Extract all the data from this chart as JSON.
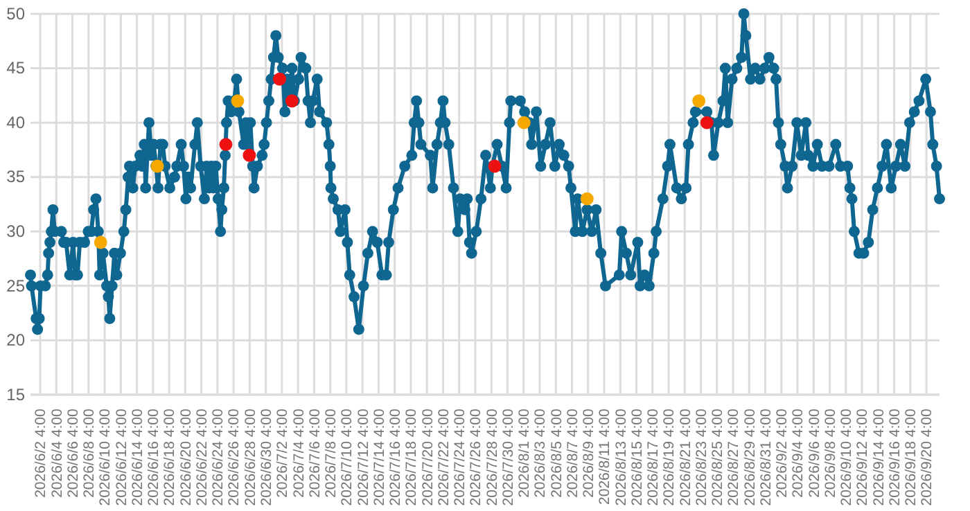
{
  "chart_data": {
    "type": "line",
    "ylim": [
      15,
      50
    ],
    "yticks": [
      15,
      20,
      25,
      30,
      35,
      40,
      45,
      50
    ],
    "xlim": [
      "2026-05-31T23:00",
      "2026-09-21T19:00"
    ],
    "xticks": [
      {
        "value": "2026-06-02T04:00",
        "label": "2026/6/2 4:00"
      },
      {
        "value": "2026-06-04T04:00",
        "label": "2026/6/4 4:00"
      },
      {
        "value": "2026-06-06T04:00",
        "label": "2026/6/6 4:00"
      },
      {
        "value": "2026-06-08T04:00",
        "label": "2026/6/8 4:00"
      },
      {
        "value": "2026-06-10T04:00",
        "label": "2026/6/10 4:00"
      },
      {
        "value": "2026-06-12T04:00",
        "label": "2026/6/12 4:00"
      },
      {
        "value": "2026-06-14T04:00",
        "label": "2026/6/14 4:00"
      },
      {
        "value": "2026-06-16T04:00",
        "label": "2026/6/16 4:00"
      },
      {
        "value": "2026-06-18T04:00",
        "label": "2026/6/18 4:00"
      },
      {
        "value": "2026-06-20T04:00",
        "label": "2026/6/20 4:00"
      },
      {
        "value": "2026-06-22T04:00",
        "label": "2026/6/22 4:00"
      },
      {
        "value": "2026-06-24T04:00",
        "label": "2026/6/24 4:00"
      },
      {
        "value": "2026-06-26T04:00",
        "label": "2026/6/26 4:00"
      },
      {
        "value": "2026-06-28T04:00",
        "label": "2026/6/28 4:00"
      },
      {
        "value": "2026-06-30T04:00",
        "label": "2026/6/30 4:00"
      },
      {
        "value": "2026-07-02T04:00",
        "label": "2026/7/2 4:00"
      },
      {
        "value": "2026-07-04T04:00",
        "label": "2026/7/4 4:00"
      },
      {
        "value": "2026-07-06T04:00",
        "label": "2026/7/6 4:00"
      },
      {
        "value": "2026-07-08T04:00",
        "label": "2026/7/8 4:00"
      },
      {
        "value": "2026-07-10T04:00",
        "label": "2026/7/10 4:00"
      },
      {
        "value": "2026-07-12T04:00",
        "label": "2026/7/12 4:00"
      },
      {
        "value": "2026-07-14T04:00",
        "label": "2026/7/14 4:00"
      },
      {
        "value": "2026-07-16T04:00",
        "label": "2026/7/16 4:00"
      },
      {
        "value": "2026-07-18T04:00",
        "label": "2026/7/18 4:00"
      },
      {
        "value": "2026-07-20T04:00",
        "label": "2026/7/20 4:00"
      },
      {
        "value": "2026-07-22T04:00",
        "label": "2026/7/22 4:00"
      },
      {
        "value": "2026-07-24T04:00",
        "label": "2026/7/24 4:00"
      },
      {
        "value": "2026-07-26T04:00",
        "label": "2026/7/26 4:00"
      },
      {
        "value": "2026-07-28T04:00",
        "label": "2026/7/28 4:00"
      },
      {
        "value": "2026-07-30T04:00",
        "label": "2026/7/30 4:00"
      },
      {
        "value": "2026-08-01T04:00",
        "label": "2026/8/1 4:00"
      },
      {
        "value": "2026-08-03T04:00",
        "label": "2026/8/3 4:00"
      },
      {
        "value": "2026-08-05T04:00",
        "label": "2026/8/5 4:00"
      },
      {
        "value": "2026-08-07T04:00",
        "label": "2026/8/7 4:00"
      },
      {
        "value": "2026-08-09T04:00",
        "label": "2026/8/9 4:00"
      },
      {
        "value": "2026-08-11T04:00",
        "label": "2026/8/11 4:00"
      },
      {
        "value": "2026-08-13T04:00",
        "label": "2026/8/13 4:00"
      },
      {
        "value": "2026-08-15T04:00",
        "label": "2026/8/15 4:00"
      },
      {
        "value": "2026-08-17T04:00",
        "label": "2026/8/17 4:00"
      },
      {
        "value": "2026-08-19T04:00",
        "label": "2026/8/19 4:00"
      },
      {
        "value": "2026-08-21T04:00",
        "label": "2026/8/21 4:00"
      },
      {
        "value": "2026-08-23T04:00",
        "label": "2026/8/23 4:00"
      },
      {
        "value": "2026-08-25T04:00",
        "label": "2026/8/25 4:00"
      },
      {
        "value": "2026-08-27T04:00",
        "label": "2026/8/27 4:00"
      },
      {
        "value": "2026-08-29T04:00",
        "label": "2026/8/29 4:00"
      },
      {
        "value": "2026-08-31T04:00",
        "label": "2026/8/31 4:00"
      },
      {
        "value": "2026-09-02T04:00",
        "label": "2026/9/2 4:00"
      },
      {
        "value": "2026-09-04T04:00",
        "label": "2026/9/4 4:00"
      },
      {
        "value": "2026-09-06T04:00",
        "label": "2026/9/6 4:00"
      },
      {
        "value": "2026-09-08T04:00",
        "label": "2026/9/8 4:00"
      },
      {
        "value": "2026-09-10T04:00",
        "label": "2026/9/10 4:00"
      },
      {
        "value": "2026-09-12T04:00",
        "label": "2026/9/12 4:00"
      },
      {
        "value": "2026-09-14T04:00",
        "label": "2026/9/14 4:00"
      },
      {
        "value": "2026-09-16T04:00",
        "label": "2026/9/16 4:00"
      },
      {
        "value": "2026-09-18T04:00",
        "label": "2026/9/18 4:00"
      },
      {
        "value": "2026-09-20T04:00",
        "label": "2026/9/20 4:00"
      }
    ],
    "grid": true,
    "marker": "circle",
    "line_style": "solid",
    "series": [
      {
        "type": "line",
        "color": "#0f6690",
        "x": [
          "2026-05-31T23:00",
          "2026-06-01T02:00",
          "2026-06-01T16:00",
          "2026-06-01T20:00",
          "2026-06-02T01:00",
          "2026-06-02T05:00",
          "2026-06-02T19:00",
          "2026-06-03T02:00",
          "2026-06-03T05:00",
          "2026-06-03T09:00",
          "2026-06-03T13:00",
          "2026-06-03T18:00",
          "2026-06-03T23:00",
          "2026-06-04T19:00",
          "2026-06-05T02:00",
          "2026-06-05T09:00",
          "2026-06-05T20:00",
          "2026-06-06T06:00",
          "2026-06-06T12:00",
          "2026-06-06T19:00",
          "2026-06-07T02:00",
          "2026-06-07T16:00",
          "2026-06-08T03:00",
          "2026-06-08T12:00",
          "2026-06-08T19:00",
          "2026-06-09T02:00",
          "2026-06-09T09:00",
          "2026-06-09T13:00",
          "2026-06-09T23:00",
          "2026-06-10T10:00",
          "2026-06-10T15:00",
          "2026-06-10T19:00",
          "2026-06-11T02:00",
          "2026-06-11T09:00",
          "2026-06-11T16:00",
          "2026-06-12T03:00",
          "2026-06-12T13:00",
          "2026-06-12T19:00",
          "2026-06-13T02:00",
          "2026-06-13T06:00",
          "2026-06-13T16:00",
          "2026-06-13T23:00",
          "2026-06-14T13:00",
          "2026-06-14T20:00",
          "2026-06-15T02:00",
          "2026-06-15T06:00",
          "2026-06-15T16:00",
          "2026-06-15T23:00",
          "2026-06-16T06:00",
          "2026-06-16T13:00",
          "2026-06-16T19:00",
          "2026-06-17T02:00",
          "2026-06-17T09:00",
          "2026-06-17T16:00",
          "2026-06-18T06:00",
          "2026-06-18T20:00",
          "2026-06-19T03:00",
          "2026-06-19T16:00",
          "2026-06-19T23:00",
          "2026-06-20T06:00",
          "2026-06-20T13:00",
          "2026-06-20T20:00",
          "2026-06-21T09:00",
          "2026-06-21T16:00",
          "2026-06-22T02:00",
          "2026-06-22T13:00",
          "2026-06-22T20:00",
          "2026-06-23T03:00",
          "2026-06-23T10:00",
          "2026-06-23T16:00",
          "2026-06-23T23:00",
          "2026-06-24T06:00",
          "2026-06-24T13:00",
          "2026-06-24T17:00",
          "2026-06-24T23:00",
          "2026-06-25T03:00",
          "2026-06-25T07:00",
          "2026-06-25T12:00",
          "2026-06-25T21:00",
          "2026-06-26T06:00",
          "2026-06-26T13:00",
          "2026-06-26T20:00",
          "2026-06-27T10:00",
          "2026-06-27T17:00",
          "2026-06-27T23:00",
          "2026-06-28T06:00",
          "2026-06-28T13:00",
          "2026-06-28T17:00",
          "2026-06-29T03:00",
          "2026-06-29T17:00",
          "2026-06-29T23:00",
          "2026-06-30T06:00",
          "2026-06-30T13:00",
          "2026-06-30T20:00",
          "2026-07-01T03:00",
          "2026-07-01T10:00",
          "2026-07-01T17:00",
          "2026-07-02T06:00",
          "2026-07-02T13:00",
          "2026-07-02T20:00",
          "2026-07-03T03:00",
          "2026-07-03T10:00",
          "2026-07-03T17:00",
          "2026-07-04T06:00",
          "2026-07-04T13:00",
          "2026-07-05T03:00",
          "2026-07-05T10:00",
          "2026-07-05T17:00",
          "2026-07-06T00:00",
          "2026-07-06T13:00",
          "2026-07-06T20:00",
          "2026-07-07T17:00",
          "2026-07-08T00:00",
          "2026-07-08T04:00",
          "2026-07-08T06:00",
          "2026-07-08T13:00",
          "2026-07-09T03:00",
          "2026-07-09T10:00",
          "2026-07-10T00:00",
          "2026-07-10T07:00",
          "2026-07-10T14:00",
          "2026-07-11T03:00",
          "2026-07-11T17:00",
          "2026-07-12T07:00",
          "2026-07-12T20:00",
          "2026-07-13T10:00",
          "2026-07-14T00:00",
          "2026-07-14T14:00",
          "2026-07-15T03:00",
          "2026-07-15T10:00",
          "2026-07-16T00:00",
          "2026-07-16T14:00",
          "2026-07-17T10:00",
          "2026-07-18T07:00",
          "2026-07-18T14:00",
          "2026-07-18T21:00",
          "2026-07-19T04:00",
          "2026-07-19T10:00",
          "2026-07-20T14:00",
          "2026-07-20T21:00",
          "2026-07-21T10:00",
          "2026-07-21T20:00",
          "2026-07-22T04:00",
          "2026-07-22T10:00",
          "2026-07-22T21:00",
          "2026-07-23T11:00",
          "2026-07-24T00:00",
          "2026-07-24T07:00",
          "2026-07-24T21:00",
          "2026-07-25T04:00",
          "2026-07-25T11:00",
          "2026-07-25T17:00",
          "2026-07-26T07:00",
          "2026-07-26T21:00",
          "2026-07-27T11:00",
          "2026-07-28T01:00",
          "2026-07-28T07:00",
          "2026-07-28T21:00",
          "2026-07-29T11:00",
          "2026-07-30T00:00",
          "2026-07-30T10:00",
          "2026-07-30T14:00",
          "2026-07-31T18:00",
          "2026-08-01T07:00",
          "2026-08-01T21:00",
          "2026-08-02T04:00",
          "2026-08-02T18:00",
          "2026-08-03T07:00",
          "2026-08-03T21:00",
          "2026-08-04T11:00",
          "2026-08-05T01:00",
          "2026-08-05T14:00",
          "2026-08-06T04:00",
          "2026-08-06T18:00",
          "2026-08-07T01:00",
          "2026-08-07T14:00",
          "2026-08-07T21:00",
          "2026-08-08T11:00",
          "2026-08-09T01:00",
          "2026-08-09T15:00",
          "2026-08-10T04:00",
          "2026-08-10T18:00",
          "2026-08-11T08:00",
          "2026-08-13T01:00",
          "2026-08-13T08:00",
          "2026-08-13T22:00",
          "2026-08-14T11:00",
          "2026-08-15T08:00",
          "2026-08-15T15:00",
          "2026-08-16T04:00",
          "2026-08-16T18:00",
          "2026-08-17T08:00",
          "2026-08-17T15:00",
          "2026-08-18T11:00",
          "2026-08-19T01:00",
          "2026-08-19T08:00",
          "2026-08-20T04:00",
          "2026-08-20T18:00",
          "2026-08-21T08:00",
          "2026-08-21T15:00",
          "2026-08-22T05:00",
          "2026-08-22T12:00",
          "2026-08-23T22:00",
          "2026-08-24T12:00",
          "2026-08-24T18:00",
          "2026-08-25T08:00",
          "2026-08-25T22:00",
          "2026-08-26T05:00",
          "2026-08-26T12:00",
          "2026-08-27T01:00",
          "2026-08-27T15:00",
          "2026-08-28T05:00",
          "2026-08-28T12:00",
          "2026-08-28T18:00",
          "2026-08-29T08:00",
          "2026-08-29T22:00",
          "2026-08-30T12:00",
          "2026-08-31T02:00",
          "2026-08-31T15:00",
          "2026-09-01T05:00",
          "2026-09-01T12:00",
          "2026-09-01T19:00",
          "2026-09-02T02:00",
          "2026-09-02T15:00",
          "2026-09-02T22:00",
          "2026-09-03T12:00",
          "2026-09-04T02:00",
          "2026-09-04T15:00",
          "2026-09-05T05:00",
          "2026-09-05T12:00",
          "2026-09-06T02:00",
          "2026-09-06T15:00",
          "2026-09-07T05:00",
          "2026-09-08T02:00",
          "2026-09-08T22:00",
          "2026-09-09T12:00",
          "2026-09-10T09:00",
          "2026-09-10T16:00",
          "2026-09-10T22:00",
          "2026-09-11T05:00",
          "2026-09-11T19:00",
          "2026-09-12T09:00",
          "2026-09-12T23:00",
          "2026-09-13T12:00",
          "2026-09-14T02:00",
          "2026-09-14T16:00",
          "2026-09-15T05:00",
          "2026-09-15T19:00",
          "2026-09-16T09:00",
          "2026-09-16T23:00",
          "2026-09-17T12:00",
          "2026-09-18T02:00",
          "2026-09-18T16:00",
          "2026-09-19T06:00",
          "2026-09-20T02:00",
          "2026-09-20T16:00",
          "2026-09-20T23:00",
          "2026-09-21T10:00",
          "2026-09-21T19:00"
        ],
        "values": [
          26,
          25,
          22,
          21,
          22,
          25,
          25,
          26,
          28,
          29,
          30,
          32,
          30,
          30,
          29,
          29,
          26,
          29,
          26,
          26,
          29,
          29,
          30,
          30,
          32,
          33,
          30,
          26,
          28,
          25,
          24,
          22,
          25,
          28,
          26,
          28,
          30,
          32,
          35,
          36,
          34,
          36,
          37,
          36,
          38,
          34,
          40,
          37,
          38,
          36,
          34,
          38,
          38,
          36,
          34,
          35,
          36,
          38,
          36,
          33,
          35,
          34,
          38,
          40,
          36,
          33,
          36,
          34,
          36,
          34,
          36,
          33,
          30,
          32,
          34,
          37,
          40,
          42,
          41,
          42,
          44,
          41,
          38,
          40,
          38,
          40,
          36,
          34,
          36,
          37,
          38,
          40,
          42,
          44,
          46,
          48,
          46,
          45,
          41,
          44,
          42,
          45,
          42,
          44,
          46,
          45,
          42,
          40,
          42,
          44,
          41,
          40,
          38,
          36,
          34,
          33,
          32,
          30,
          32,
          29,
          26,
          24,
          21,
          25,
          28,
          30,
          29,
          26,
          26,
          29,
          32,
          34,
          36,
          37,
          40,
          42,
          40,
          38,
          37,
          34,
          38,
          40,
          42,
          40,
          38,
          34,
          30,
          33,
          32,
          33,
          29,
          28,
          30,
          33,
          37,
          34,
          36,
          38,
          36,
          34,
          40,
          42,
          42,
          41,
          40,
          38,
          41,
          36,
          38,
          40,
          36,
          38,
          37,
          36,
          34,
          30,
          33,
          30,
          32,
          30,
          32,
          28,
          25,
          26,
          30,
          28,
          26,
          29,
          25,
          26,
          25,
          28,
          30,
          33,
          36,
          38,
          34,
          33,
          34,
          38,
          40,
          41,
          41,
          40,
          37,
          40,
          42,
          45,
          40,
          44,
          45,
          46,
          50,
          48,
          44,
          45,
          44,
          45,
          46,
          45,
          44,
          40,
          38,
          36,
          34,
          36,
          40,
          37,
          40,
          37,
          36,
          38,
          36,
          36,
          38,
          36,
          36,
          34,
          33,
          30,
          28,
          28,
          29,
          32,
          34,
          36,
          38,
          34,
          36,
          38,
          36,
          40,
          41,
          42,
          44,
          41,
          38,
          36,
          33
        ]
      },
      {
        "type": "scatter",
        "color": "#f5a800",
        "x": [
          "2026-06-09T16:00",
          "2026-06-16T17:00",
          "2026-06-26T16:00",
          "2026-08-01T05:00",
          "2026-08-09T01:00",
          "2026-08-22T22:00"
        ],
        "values": [
          29,
          36,
          42,
          40,
          33,
          42
        ]
      },
      {
        "type": "scatter",
        "color": "#ee1111",
        "x": [
          "2026-06-25T05:00",
          "2026-06-28T03:00",
          "2026-07-01T21:00",
          "2026-07-03T10:00",
          "2026-07-28T14:00",
          "2026-08-23T22:00"
        ],
        "values": [
          38,
          37,
          44,
          42,
          36,
          40
        ]
      }
    ]
  }
}
